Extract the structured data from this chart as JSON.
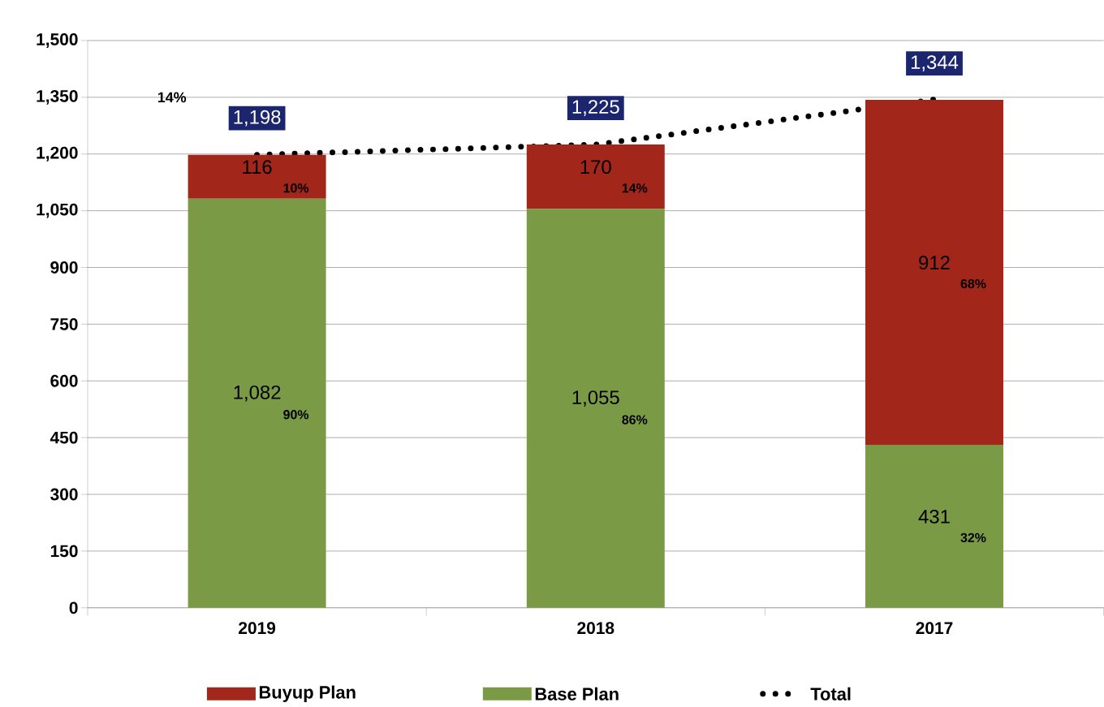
{
  "chart_data": {
    "type": "bar",
    "stacked": true,
    "categories": [
      "2019",
      "2018",
      "2017"
    ],
    "series": [
      {
        "name": "Base Plan",
        "color": "#7b9a46",
        "values": [
          1082,
          1055,
          431
        ],
        "value_labels": [
          "1,082",
          "1,055",
          "431"
        ]
      },
      {
        "name": "Buyup Plan",
        "color": "#a3261b",
        "values": [
          116,
          170,
          912
        ],
        "value_labels": [
          "116",
          "170",
          "912"
        ]
      },
      {
        "name": "Total",
        "type": "line",
        "color": "#000000",
        "line_style": "dotted",
        "marker": "none",
        "values": [
          1198,
          1225,
          1344
        ]
      }
    ],
    "totals": [
      "1,198",
      "1,225",
      "1,344"
    ],
    "ylim": [
      0,
      1500
    ],
    "yticks": [
      0,
      150,
      300,
      450,
      600,
      750,
      900,
      {
        "value": 1050,
        "label": "1,050"
      },
      {
        "value": 1200,
        "label": "1,200"
      },
      {
        "value": 1350,
        "label": "1,350"
      },
      {
        "value": 1500,
        "label": "1,500"
      }
    ],
    "grid": "y",
    "legend": "bottom",
    "annotations": [
      "90%",
      "10%",
      "86%",
      "14%",
      "32%",
      "68%",
      "14%"
    ]
  }
}
